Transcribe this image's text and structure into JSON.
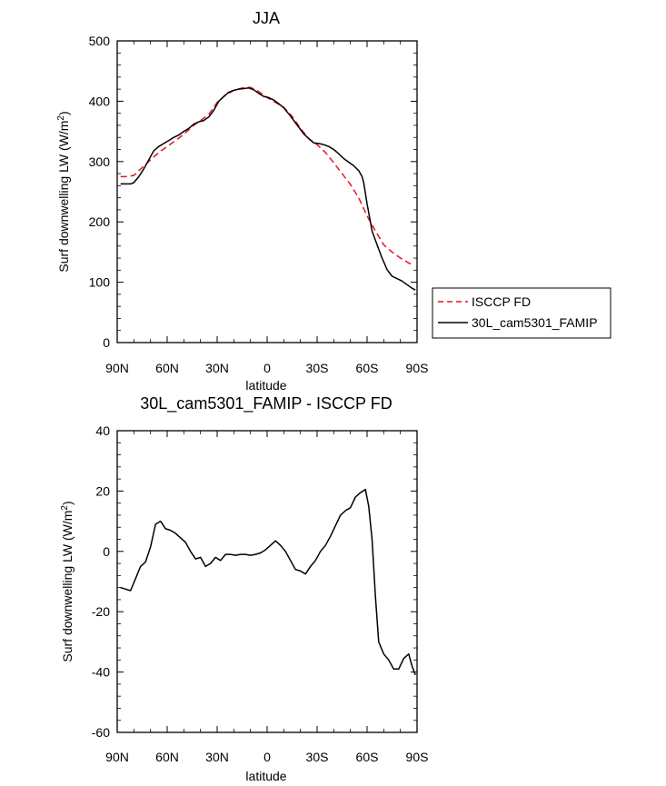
{
  "chart_data": [
    {
      "type": "line",
      "title": "JJA",
      "xlabel": "latitude",
      "ylabel": "Surf downwelling LW (W/m",
      "ylabel_sup": "2",
      "ylabel_close": ")",
      "xlim": [
        90,
        -90
      ],
      "ylim": [
        0,
        500
      ],
      "x_ticks": [
        90,
        60,
        30,
        0,
        -30,
        -60,
        -90
      ],
      "x_tick_labels": [
        "90N",
        "60N",
        "30N",
        "0",
        "30S",
        "60S",
        "90S"
      ],
      "y_ticks": [
        0,
        100,
        200,
        300,
        400,
        500
      ],
      "y_tick_labels": [
        "0",
        "100",
        "200",
        "300",
        "400",
        "500"
      ],
      "legend_position": "right",
      "series": [
        {
          "name": "ISCCP FD",
          "color": "#e8141c",
          "dash": "dashed",
          "x": [
            88,
            85,
            80,
            75,
            70,
            65,
            60,
            55,
            50,
            45,
            40,
            35,
            30,
            25,
            20,
            15,
            10,
            5,
            0,
            -5,
            -10,
            -15,
            -20,
            -25,
            -30,
            -35,
            -40,
            -45,
            -50,
            -55,
            -60,
            -65,
            -70,
            -75,
            -80,
            -85,
            -88
          ],
          "y": [
            275,
            275,
            277,
            290,
            303,
            315,
            325,
            335,
            345,
            358,
            368,
            378,
            398,
            410,
            418,
            422,
            423,
            416,
            406,
            398,
            390,
            375,
            355,
            338,
            328,
            315,
            298,
            280,
            262,
            240,
            210,
            185,
            162,
            150,
            140,
            132,
            128
          ]
        },
        {
          "name": "30L_cam5301_FAMIP",
          "color": "#000000",
          "dash": "solid",
          "x": [
            88,
            85,
            82,
            80,
            77,
            74,
            71,
            68,
            65,
            62,
            59,
            56,
            53,
            50,
            47,
            44,
            41,
            38,
            35,
            32,
            29,
            26,
            23,
            20,
            17,
            14,
            11,
            8,
            5,
            2,
            -1,
            -4,
            -7,
            -10,
            -13,
            -16,
            -19,
            -22,
            -25,
            -28,
            -31,
            -34,
            -37,
            -40,
            -43,
            -46,
            -49,
            -52,
            -55,
            -57,
            -58,
            -60,
            -63,
            -66,
            -69,
            -72,
            -75,
            -78,
            -81,
            -84,
            -87,
            -89
          ],
          "y": [
            263,
            263,
            263,
            265,
            275,
            288,
            303,
            318,
            325,
            330,
            335,
            340,
            344,
            350,
            355,
            362,
            366,
            368,
            374,
            385,
            400,
            408,
            415,
            418,
            420,
            421,
            422,
            419,
            413,
            408,
            406,
            402,
            396,
            389,
            379,
            368,
            357,
            346,
            338,
            331,
            330,
            328,
            325,
            320,
            313,
            305,
            299,
            293,
            285,
            275,
            265,
            230,
            185,
            162,
            140,
            121,
            110,
            106,
            102,
            96,
            90,
            87
          ]
        }
      ]
    },
    {
      "type": "line",
      "title": "30L_cam5301_FAMIP - ISCCP FD",
      "xlabel": "latitude",
      "ylabel": "Surf downwelling LW (W/m",
      "ylabel_sup": "2",
      "ylabel_close": ")",
      "xlim": [
        90,
        -90
      ],
      "ylim": [
        -60,
        40
      ],
      "x_ticks": [
        90,
        60,
        30,
        0,
        -30,
        -60,
        -90
      ],
      "x_tick_labels": [
        "90N",
        "60N",
        "30N",
        "0",
        "30S",
        "60S",
        "90S"
      ],
      "y_ticks": [
        -60,
        -40,
        -20,
        0,
        20,
        40
      ],
      "y_tick_labels": [
        "-60",
        "-40",
        "-20",
        "0",
        "20",
        "40"
      ],
      "series": [
        {
          "color": "#000000",
          "dash": "solid",
          "x": [
            88,
            85,
            82,
            79,
            76,
            73,
            70,
            67,
            64,
            61,
            58,
            55,
            52,
            49,
            46,
            43,
            40,
            37,
            34,
            31,
            28,
            25,
            22,
            19,
            16,
            13,
            10,
            7,
            4,
            1,
            -2,
            -5,
            -8,
            -11,
            -14,
            -17,
            -20,
            -23,
            -26,
            -29,
            -32,
            -35,
            -38,
            -41,
            -44,
            -47,
            -50,
            -53,
            -56,
            -59,
            -61,
            -63,
            -65,
            -67,
            -70,
            -73,
            -76,
            -79,
            -82,
            -85,
            -87,
            -89
          ],
          "y": [
            -12,
            -12.5,
            -13,
            -9,
            -5,
            -3.5,
            1.5,
            9,
            10,
            7.5,
            7,
            6,
            4.5,
            3,
            0,
            -2.5,
            -2,
            -5,
            -4,
            -2,
            -3,
            -1,
            -1,
            -1.3,
            -1,
            -1,
            -1.3,
            -1,
            -0.5,
            0.5,
            2,
            3.5,
            2,
            0,
            -3,
            -6,
            -6.5,
            -7.5,
            -5,
            -3,
            0,
            2,
            5,
            8.5,
            12,
            13.5,
            14.5,
            18,
            19.5,
            20.5,
            15,
            4,
            -15,
            -30,
            -34,
            -36,
            -39,
            -39,
            -35.5,
            -34,
            -38,
            -41
          ]
        }
      ]
    }
  ]
}
